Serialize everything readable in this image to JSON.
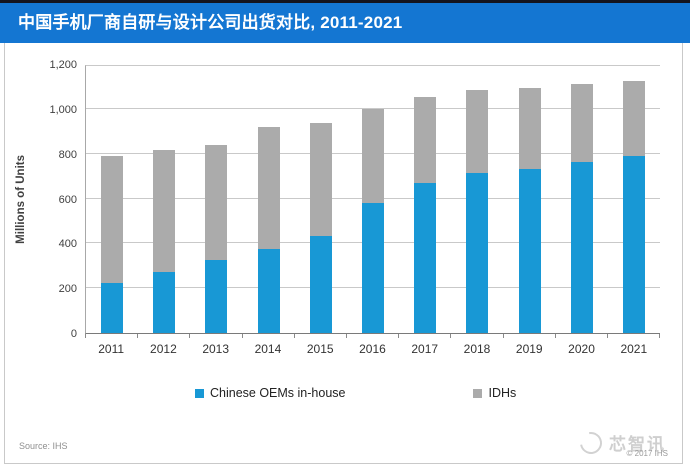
{
  "header": {
    "title": "中国手机厂商自研与设计公司出货对比, 2011-2021"
  },
  "chart_data": {
    "type": "bar",
    "stacked": true,
    "title": "中国手机厂商自研与设计公司出货对比, 2011-2021",
    "xlabel": "",
    "ylabel": "Millions of Units",
    "ylim": [
      0,
      1200
    ],
    "ytick_values": [
      0,
      200,
      400,
      600,
      800,
      1000,
      1200
    ],
    "ytick_labels": [
      "0",
      "200",
      "400",
      "600",
      "800",
      "1,000",
      "1,200"
    ],
    "categories": [
      "2011",
      "2012",
      "2013",
      "2014",
      "2015",
      "2016",
      "2017",
      "2018",
      "2019",
      "2020",
      "2021"
    ],
    "series": [
      {
        "name": "Chinese OEMs in-house",
        "color": "#1898d5",
        "values": [
          225,
          270,
          325,
          375,
          435,
          580,
          670,
          715,
          730,
          765,
          790
        ]
      },
      {
        "name": "IDHs",
        "color": "#ababab",
        "values": [
          565,
          545,
          515,
          545,
          500,
          420,
          385,
          370,
          365,
          345,
          335
        ]
      }
    ],
    "grid": true,
    "legend_position": "bottom"
  },
  "footer": {
    "source": "Source: IHS",
    "watermark": "芯智讯",
    "copyright": "© 2017 IHS"
  },
  "colors": {
    "header_bar": "#1476d2",
    "top_strip": "#14141e",
    "oem_blue": "#1898d5",
    "idh_gray": "#ababab",
    "gridline": "#c9c9c9"
  }
}
